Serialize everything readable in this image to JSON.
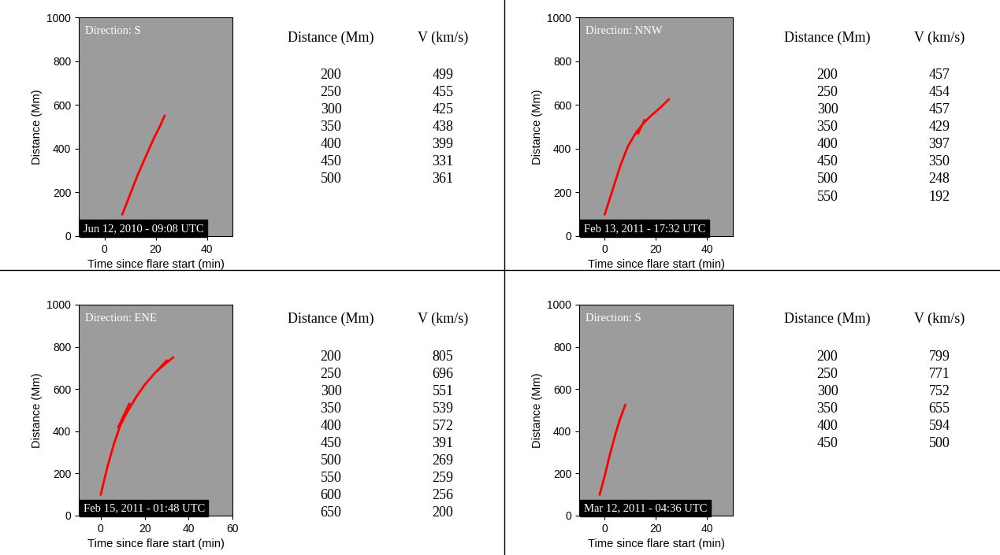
{
  "chart_data": [
    {
      "type": "line",
      "xlabel": "Time since flare start (min)",
      "ylabel": "Distance (Mm)",
      "xlim": [
        -10,
        50
      ],
      "xticks": [
        0,
        20,
        40
      ],
      "ylim": [
        0,
        1000
      ],
      "yticks": [
        0,
        200,
        400,
        600,
        800,
        1000
      ],
      "annotations": [
        "Direction: S",
        "Jun 12, 2010 - 09:08 UTC"
      ],
      "series": [
        {
          "color": "#ff0000",
          "x": [
            7,
            10,
            13,
            16,
            19,
            22,
            23.5
          ],
          "values": [
            100,
            190,
            280,
            360,
            440,
            510,
            550
          ]
        }
      ],
      "table": {
        "columns": [
          "Distance (Mm)",
          "V (km/s)"
        ],
        "rows": [
          [
            200,
            499
          ],
          [
            250,
            455
          ],
          [
            300,
            425
          ],
          [
            350,
            438
          ],
          [
            400,
            399
          ],
          [
            450,
            331
          ],
          [
            500,
            361
          ]
        ]
      }
    },
    {
      "type": "line",
      "xlabel": "Time since flare start (min)",
      "ylabel": "Distance (Mm)",
      "xlim": [
        -10,
        50
      ],
      "xticks": [
        0,
        20,
        40
      ],
      "ylim": [
        0,
        1000
      ],
      "yticks": [
        0,
        200,
        400,
        600,
        800,
        1000
      ],
      "annotations": [
        "Direction: NNW",
        "Feb 13, 2011 - 17:32 UTC"
      ],
      "series": [
        {
          "color": "#ff0000",
          "x": [
            0,
            3,
            6,
            9,
            12,
            15,
            18,
            21,
            25
          ],
          "values": [
            100,
            210,
            320,
            410,
            470,
            515,
            550,
            580,
            625
          ]
        },
        {
          "color": "#ff0000",
          "x": [
            13,
            15.5
          ],
          "values": [
            470,
            530
          ]
        }
      ],
      "table": {
        "columns": [
          "Distance (Mm)",
          "V (km/s)"
        ],
        "rows": [
          [
            200,
            457
          ],
          [
            250,
            454
          ],
          [
            300,
            457
          ],
          [
            350,
            429
          ],
          [
            400,
            397
          ],
          [
            450,
            350
          ],
          [
            500,
            248
          ],
          [
            550,
            192
          ]
        ]
      }
    },
    {
      "type": "line",
      "xlabel": "Time since flare start (min)",
      "ylabel": "Distance (Mm)",
      "xlim": [
        -10,
        60
      ],
      "xticks": [
        0,
        20,
        40,
        60
      ],
      "ylim": [
        0,
        1000
      ],
      "yticks": [
        0,
        200,
        400,
        600,
        800,
        1000
      ],
      "annotations": [
        "Direction: ENE",
        "Feb 15, 2011 - 01:48 UTC"
      ],
      "series": [
        {
          "color": "#ff0000",
          "x": [
            0,
            3,
            6,
            9,
            12,
            16,
            20,
            25,
            30,
            33
          ],
          "values": [
            100,
            230,
            340,
            430,
            490,
            560,
            620,
            680,
            725,
            750
          ]
        },
        {
          "color": "#ff0000",
          "x": [
            8,
            13
          ],
          "values": [
            420,
            530
          ]
        },
        {
          "color": "#ff0000",
          "x": [
            26,
            30
          ],
          "values": [
            690,
            735
          ]
        }
      ],
      "table": {
        "columns": [
          "Distance (Mm)",
          "V (km/s)"
        ],
        "rows": [
          [
            200,
            805
          ],
          [
            250,
            696
          ],
          [
            300,
            551
          ],
          [
            350,
            539
          ],
          [
            400,
            572
          ],
          [
            450,
            391
          ],
          [
            500,
            269
          ],
          [
            550,
            259
          ],
          [
            600,
            256
          ],
          [
            650,
            200
          ]
        ]
      }
    },
    {
      "type": "line",
      "xlabel": "Time since flare start (min)",
      "ylabel": "Distance (Mm)",
      "xlim": [
        -10,
        50
      ],
      "xticks": [
        0,
        20,
        40
      ],
      "ylim": [
        0,
        1000
      ],
      "yticks": [
        0,
        200,
        400,
        600,
        800,
        1000
      ],
      "annotations": [
        "Direction: S",
        "Mar 12, 2011 - 04:36 UTC"
      ],
      "series": [
        {
          "color": "#ff0000",
          "x": [
            -2,
            0,
            2,
            4,
            6,
            8
          ],
          "values": [
            100,
            190,
            290,
            380,
            460,
            525
          ]
        }
      ],
      "table": {
        "columns": [
          "Distance (Mm)",
          "V (km/s)"
        ],
        "rows": [
          [
            200,
            799
          ],
          [
            250,
            771
          ],
          [
            300,
            752
          ],
          [
            350,
            655
          ],
          [
            400,
            594
          ],
          [
            450,
            500
          ]
        ]
      }
    }
  ]
}
